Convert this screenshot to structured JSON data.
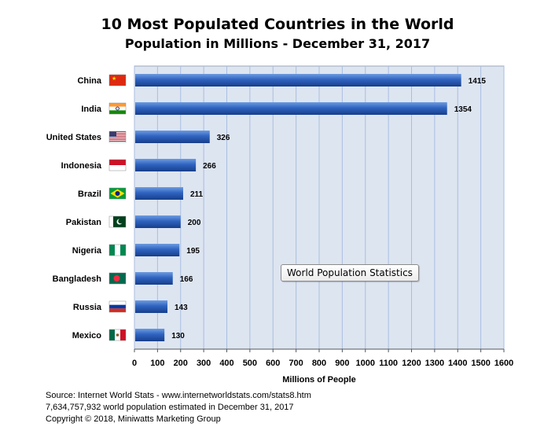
{
  "chart_data": {
    "type": "bar",
    "orientation": "horizontal",
    "title": "10 Most Populated Countries in the World",
    "subtitle": "Population in Millions  -  December 31, 2017",
    "xlabel": "Millions of People",
    "xlim": [
      0,
      1600
    ],
    "xticks": [
      0,
      100,
      200,
      300,
      400,
      500,
      600,
      700,
      800,
      900,
      1000,
      1100,
      1200,
      1300,
      1400,
      1500,
      1600
    ],
    "grid": true,
    "categories": [
      "China",
      "India",
      "United States",
      "Indonesia",
      "Brazil",
      "Pakistan",
      "Nigeria",
      "Bangladesh",
      "Russia",
      "Mexico"
    ],
    "values": [
      1415,
      1354,
      326,
      266,
      211,
      200,
      195,
      166,
      143,
      130
    ],
    "flags": [
      "flag-china-icon",
      "flag-india-icon",
      "flag-usa-icon",
      "flag-indonesia-icon",
      "flag-brazil-icon",
      "flag-pakistan-icon",
      "flag-nigeria-icon",
      "flag-bangladesh-icon",
      "flag-russia-icon",
      "flag-mexico-icon"
    ],
    "bar_color": "#2a5db0",
    "plot_background": "#dde5f1",
    "annotation": "World Population Statistics"
  },
  "footer": {
    "source": "Source:  Internet World Stats  -  www.internetworldstats.com/stats8.htm",
    "estimate": "7,634,757,932 world population estimated in December 31, 2017",
    "copyright": "Copyright © 2018, Miniwatts Marketing Group"
  }
}
